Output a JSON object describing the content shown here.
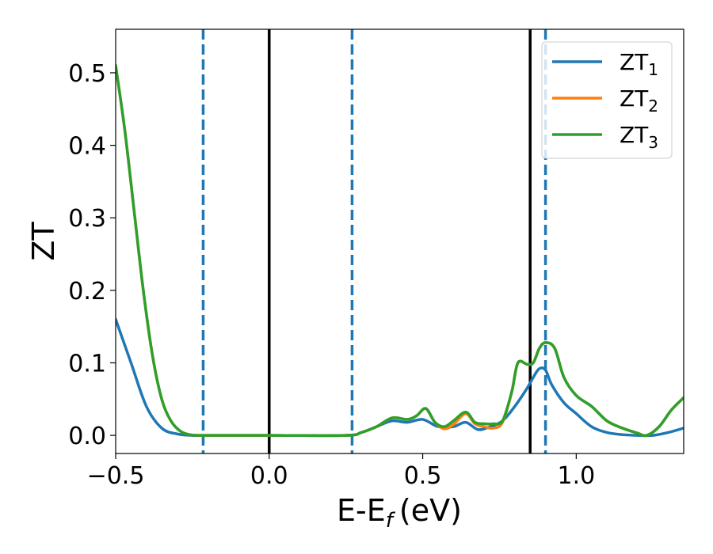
{
  "chart_data": {
    "type": "line",
    "xlabel_main": "E-E",
    "xlabel_sub": "f",
    "xlabel_unit": "(eV)",
    "ylabel": "ZT",
    "xlim": [
      -0.5,
      1.35
    ],
    "ylim": [
      -0.025,
      0.56
    ],
    "xticks": [
      -0.5,
      0.0,
      0.5,
      1.0
    ],
    "xtick_labels": [
      "−0.5",
      "0.0",
      "0.5",
      "1.0"
    ],
    "yticks": [
      0.0,
      0.1,
      0.2,
      0.3,
      0.4,
      0.5
    ],
    "ytick_labels": [
      "0.0",
      "0.1",
      "0.2",
      "0.3",
      "0.4",
      "0.5"
    ],
    "grid": false,
    "legend_position": "top-right",
    "vlines": [
      {
        "x": -0.215,
        "style": "dashed",
        "color": "#1f77b4"
      },
      {
        "x": 0.0,
        "style": "solid",
        "color": "#000000"
      },
      {
        "x": 0.27,
        "style": "dashed",
        "color": "#1f77b4"
      },
      {
        "x": 0.85,
        "style": "solid",
        "color": "#000000"
      },
      {
        "x": 0.9,
        "style": "dashed",
        "color": "#1f77b4"
      }
    ],
    "series": [
      {
        "name": "ZT",
        "sub": "1",
        "color": "#1f77b4",
        "x": [
          -0.5,
          -0.45,
          -0.4,
          -0.35,
          -0.3,
          -0.25,
          -0.2,
          0.0,
          0.25,
          0.3,
          0.35,
          0.4,
          0.45,
          0.5,
          0.55,
          0.6,
          0.64,
          0.68,
          0.72,
          0.76,
          0.8,
          0.84,
          0.86,
          0.88,
          0.9,
          0.92,
          0.96,
          1.0,
          1.05,
          1.1,
          1.15,
          1.2,
          1.25,
          1.3,
          1.35
        ],
        "y": [
          0.16,
          0.1,
          0.04,
          0.01,
          0.002,
          0.0,
          0.0,
          0.0,
          0.0,
          0.004,
          0.012,
          0.02,
          0.018,
          0.022,
          0.012,
          0.012,
          0.018,
          0.008,
          0.012,
          0.02,
          0.04,
          0.065,
          0.08,
          0.092,
          0.09,
          0.07,
          0.045,
          0.03,
          0.012,
          0.004,
          0.001,
          0.0,
          0.0,
          0.004,
          0.01
        ]
      },
      {
        "name": "ZT",
        "sub": "2",
        "color": "#ff7f0e",
        "x": [
          -0.5,
          -0.47,
          -0.44,
          -0.41,
          -0.38,
          -0.35,
          -0.32,
          -0.29,
          -0.26,
          -0.23,
          -0.2,
          0.0,
          0.25,
          0.3,
          0.35,
          0.4,
          0.45,
          0.48,
          0.51,
          0.54,
          0.57,
          0.6,
          0.64,
          0.67,
          0.7,
          0.73,
          0.76,
          0.79,
          0.81,
          0.84,
          0.86,
          0.88,
          0.9,
          0.93,
          0.96,
          1.0,
          1.05,
          1.1,
          1.15,
          1.2,
          1.23,
          1.27,
          1.31,
          1.35
        ],
        "y": [
          0.51,
          0.42,
          0.31,
          0.2,
          0.11,
          0.05,
          0.02,
          0.006,
          0.001,
          0.0,
          0.0,
          0.0,
          0.0,
          0.004,
          0.012,
          0.024,
          0.022,
          0.027,
          0.037,
          0.018,
          0.009,
          0.015,
          0.03,
          0.016,
          0.012,
          0.01,
          0.018,
          0.06,
          0.1,
          0.098,
          0.1,
          0.12,
          0.128,
          0.12,
          0.08,
          0.055,
          0.04,
          0.02,
          0.01,
          0.003,
          0.0,
          0.012,
          0.035,
          0.052
        ]
      },
      {
        "name": "ZT",
        "sub": "3",
        "color": "#2ca02c",
        "x": [
          -0.5,
          -0.47,
          -0.44,
          -0.41,
          -0.38,
          -0.35,
          -0.32,
          -0.29,
          -0.26,
          -0.23,
          -0.2,
          0.0,
          0.25,
          0.3,
          0.35,
          0.4,
          0.45,
          0.48,
          0.51,
          0.54,
          0.57,
          0.6,
          0.64,
          0.67,
          0.7,
          0.73,
          0.76,
          0.79,
          0.81,
          0.84,
          0.86,
          0.88,
          0.9,
          0.93,
          0.96,
          1.0,
          1.05,
          1.1,
          1.15,
          1.2,
          1.23,
          1.27,
          1.31,
          1.35
        ],
        "y": [
          0.51,
          0.42,
          0.31,
          0.2,
          0.11,
          0.05,
          0.02,
          0.006,
          0.001,
          0.0,
          0.0,
          0.0,
          0.0,
          0.004,
          0.012,
          0.024,
          0.022,
          0.027,
          0.037,
          0.018,
          0.012,
          0.02,
          0.032,
          0.018,
          0.016,
          0.016,
          0.02,
          0.06,
          0.1,
          0.098,
          0.1,
          0.12,
          0.128,
          0.12,
          0.08,
          0.055,
          0.04,
          0.02,
          0.01,
          0.003,
          0.0,
          0.012,
          0.035,
          0.052
        ]
      }
    ]
  }
}
